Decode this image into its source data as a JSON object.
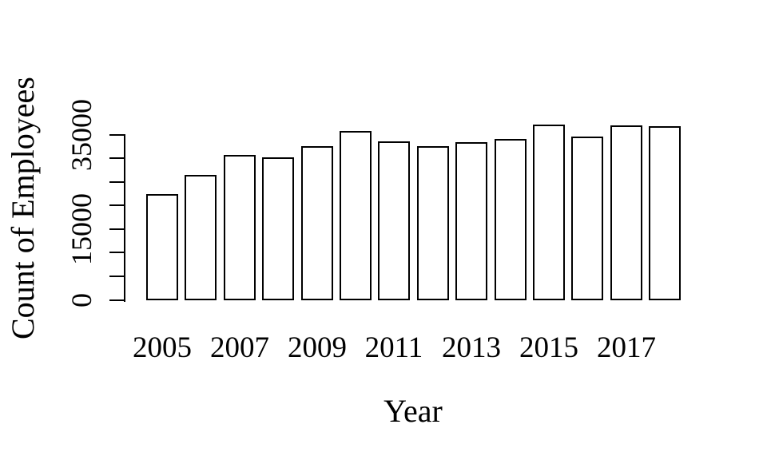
{
  "chart_data": {
    "type": "bar",
    "title": "",
    "xlabel": "Year",
    "ylabel": "Count of Employees",
    "categories": [
      "2005",
      "2006",
      "2007",
      "2008",
      "2009",
      "2010",
      "2011",
      "2012",
      "2013",
      "2014",
      "2015",
      "2016",
      "2017",
      "2018"
    ],
    "values": [
      22500,
      26500,
      30800,
      30300,
      32700,
      35800,
      33600,
      32700,
      33400,
      34200,
      37200,
      34700,
      37000,
      36800
    ],
    "x_tick_labels_shown": [
      "2005",
      "2007",
      "2009",
      "2011",
      "2013",
      "2015",
      "2017"
    ],
    "y_ticks": [
      0,
      5000,
      10000,
      15000,
      20000,
      25000,
      30000,
      35000
    ],
    "y_tick_labels_shown": [
      "0",
      "15000",
      "35000"
    ],
    "ylim": [
      0,
      37500
    ],
    "grid": false,
    "legend": "none",
    "bar_fill": "#ffffff",
    "bar_border": "#000000",
    "background": "#ffffff",
    "text_color": "#000000"
  }
}
